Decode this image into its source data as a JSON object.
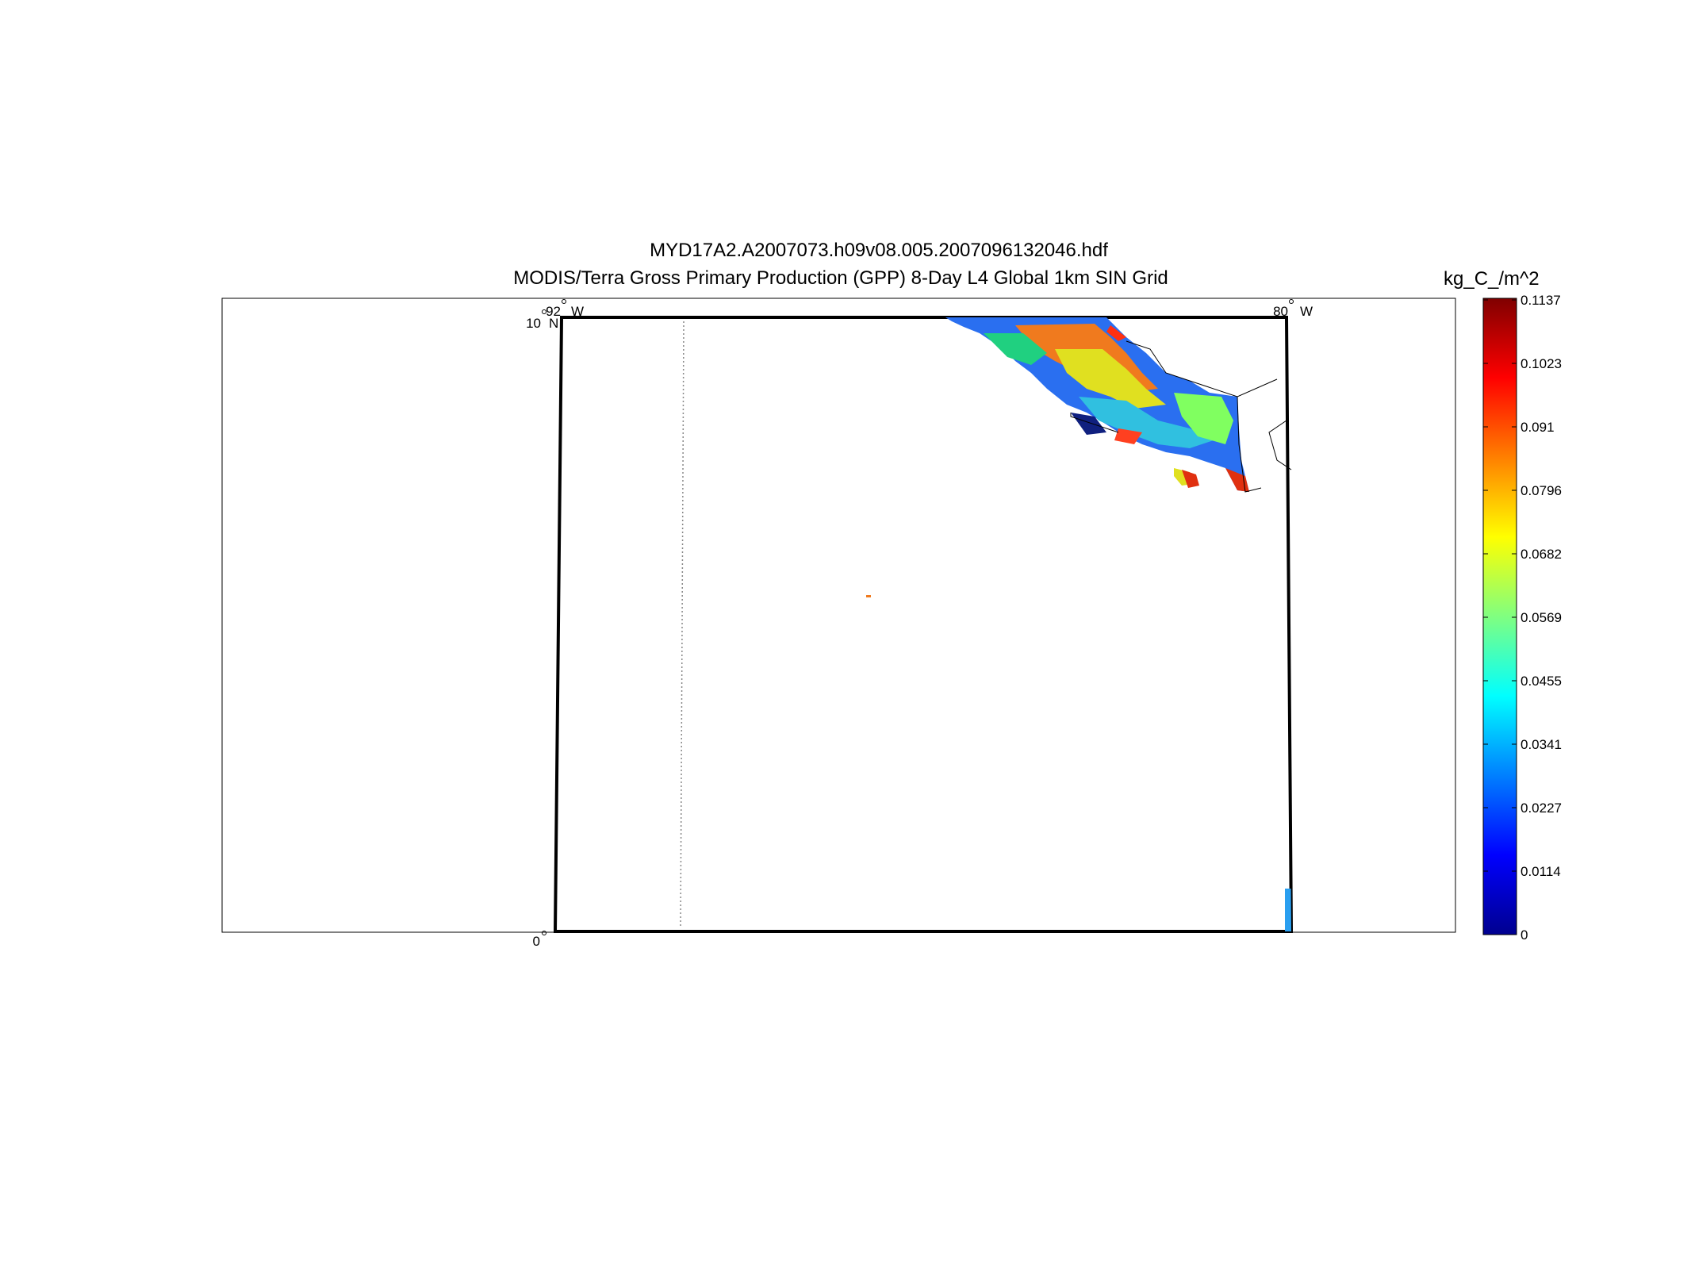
{
  "titles": {
    "line1": "MYD17A2.A2007073.h09v08.005.2007096132046.hdf",
    "line2": "MODIS/Terra Gross Primary Production (GPP) 8-Day L4 Global 1km SIN Grid"
  },
  "map": {
    "lon_labels": [
      {
        "deg": "92",
        "hemi": "W"
      },
      {
        "deg": "80",
        "hemi": "W"
      }
    ],
    "lat_labels": [
      {
        "deg": "10",
        "hemi": "N"
      },
      {
        "deg": "0",
        "hemi": ""
      }
    ]
  },
  "colorbar": {
    "unit": "kg_C_/m^2",
    "min": 0,
    "max": 0.1137,
    "colormap": "jet",
    "ticks": [
      "0.1137",
      "0.1023",
      "0.091",
      "0.0796",
      "0.0682",
      "0.0569",
      "0.0455",
      "0.0341",
      "0.0227",
      "0.0114",
      "0"
    ]
  }
}
